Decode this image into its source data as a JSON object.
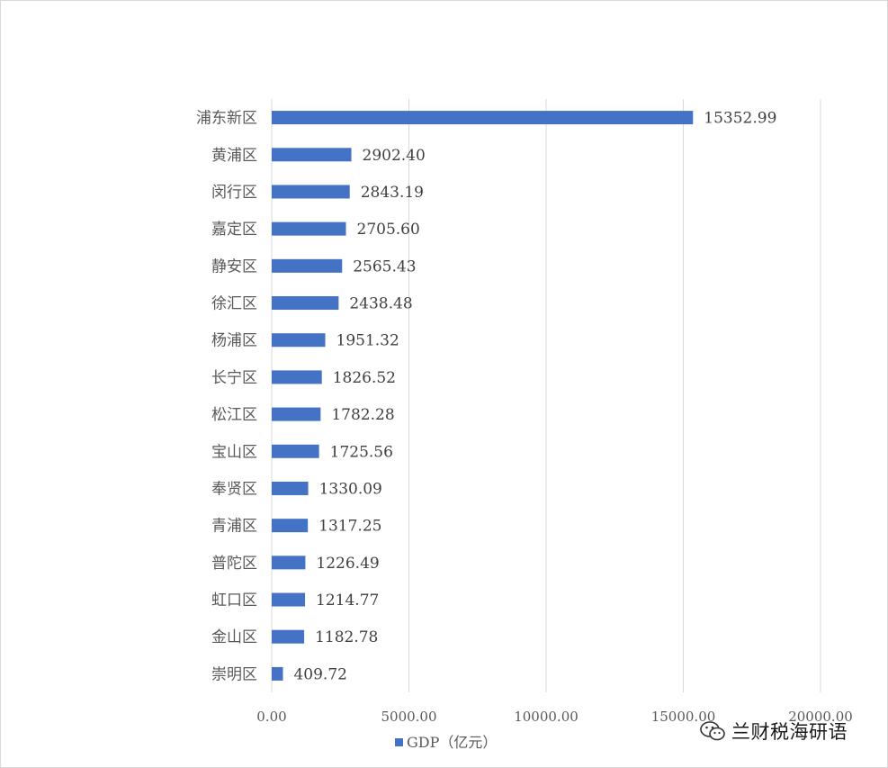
{
  "chart_data": {
    "type": "bar",
    "orientation": "horizontal",
    "categories": [
      "浦东新区",
      "黄浦区",
      "闵行区",
      "嘉定区",
      "静安区",
      "徐汇区",
      "杨浦区",
      "长宁区",
      "松江区",
      "宝山区",
      "奉贤区",
      "青浦区",
      "普陀区",
      "虹口区",
      "金山区",
      "崇明区"
    ],
    "series": [
      {
        "name": "GDP（亿元）",
        "color": "#4472c4",
        "values": [
          15352.99,
          2902.4,
          2843.19,
          2705.6,
          2565.43,
          2438.48,
          1951.32,
          1826.52,
          1782.28,
          1725.56,
          1330.09,
          1317.25,
          1226.49,
          1214.77,
          1182.78,
          409.72
        ],
        "value_labels": [
          "15352.99",
          "2902.40",
          "2843.19",
          "2705.60",
          "2565.43",
          "2438.48",
          "1951.32",
          "1826.52",
          "1782.28",
          "1725.56",
          "1330.09",
          "1317.25",
          "1226.49",
          "1214.77",
          "1182.78",
          "409.72"
        ]
      }
    ],
    "xlim": [
      0,
      20000
    ],
    "x_ticks": [
      "0.00",
      "5000.00",
      "10000.00",
      "15000.00",
      "20000.00"
    ],
    "grid": "vertical",
    "legend": "bottom-left"
  },
  "watermark": {
    "text": "兰财税海研语",
    "icon": "wechat-icon"
  }
}
